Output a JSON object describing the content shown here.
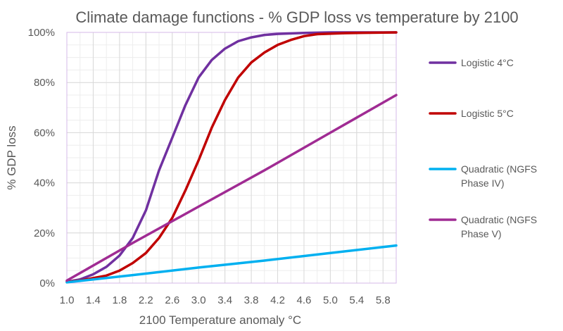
{
  "chart_data": {
    "type": "line",
    "title": "Climate damage functions - % GDP loss vs temperature by 2100",
    "xlabel": "2100 Temperature anomaly °C",
    "ylabel": "% GDP loss",
    "xlim": [
      1.0,
      6.0
    ],
    "ylim": [
      0,
      100
    ],
    "x_ticks": [
      "1.0",
      "1.4",
      "1.8",
      "2.2",
      "2.6",
      "3.0",
      "3.4",
      "3.8",
      "4.2",
      "4.6",
      "5.0",
      "5.4",
      "5.8"
    ],
    "y_ticks": [
      "0%",
      "20%",
      "40%",
      "60%",
      "80%",
      "100%"
    ],
    "grid": true,
    "legend_position": "right",
    "series": [
      {
        "name": "Logistic 4°C",
        "legend_lines": [
          "Logistic 4°C"
        ],
        "color": "#7030a0",
        "points": [
          [
            1.0,
            0.5
          ],
          [
            1.2,
            1.5
          ],
          [
            1.4,
            3.5
          ],
          [
            1.6,
            6.5
          ],
          [
            1.8,
            11
          ],
          [
            2.0,
            18
          ],
          [
            2.2,
            29
          ],
          [
            2.4,
            45
          ],
          [
            2.6,
            58
          ],
          [
            2.8,
            71
          ],
          [
            3.0,
            82
          ],
          [
            3.2,
            89
          ],
          [
            3.4,
            93.5
          ],
          [
            3.6,
            96.5
          ],
          [
            3.8,
            98
          ],
          [
            4.0,
            99
          ],
          [
            4.2,
            99.4
          ],
          [
            4.6,
            99.8
          ],
          [
            5.0,
            100
          ],
          [
            6.0,
            100
          ]
        ]
      },
      {
        "name": "Logistic 5°C",
        "legend_lines": [
          "Logistic 5°C"
        ],
        "color": "#c00000",
        "points": [
          [
            1.0,
            0.5
          ],
          [
            1.2,
            1
          ],
          [
            1.4,
            2
          ],
          [
            1.6,
            3
          ],
          [
            1.8,
            5
          ],
          [
            2.0,
            8
          ],
          [
            2.2,
            12
          ],
          [
            2.4,
            18
          ],
          [
            2.6,
            26
          ],
          [
            2.8,
            37
          ],
          [
            3.0,
            49
          ],
          [
            3.2,
            62
          ],
          [
            3.4,
            73
          ],
          [
            3.6,
            82
          ],
          [
            3.8,
            88
          ],
          [
            4.0,
            92
          ],
          [
            4.2,
            95
          ],
          [
            4.4,
            97
          ],
          [
            4.6,
            98.5
          ],
          [
            4.8,
            99.3
          ],
          [
            5.2,
            99.7
          ],
          [
            6.0,
            100
          ]
        ]
      },
      {
        "name": "Quadratic (NGFS Phase IV)",
        "legend_lines": [
          "Quadratic (NGFS",
          "Phase IV)"
        ],
        "color": "#00b0f0",
        "points": [
          [
            1.0,
            0.3
          ],
          [
            2.0,
            3.2
          ],
          [
            3.0,
            6.2
          ],
          [
            4.0,
            9
          ],
          [
            5.0,
            12
          ],
          [
            6.0,
            15
          ]
        ]
      },
      {
        "name": "Quadratic (NGFS Phase V)",
        "legend_lines": [
          "Quadratic (NGFS",
          "Phase V)"
        ],
        "color": "#a02b93",
        "points": [
          [
            1.0,
            1
          ],
          [
            2.0,
            16
          ],
          [
            3.0,
            30.5
          ],
          [
            4.0,
            45
          ],
          [
            5.0,
            60
          ],
          [
            6.0,
            75
          ]
        ]
      }
    ]
  }
}
